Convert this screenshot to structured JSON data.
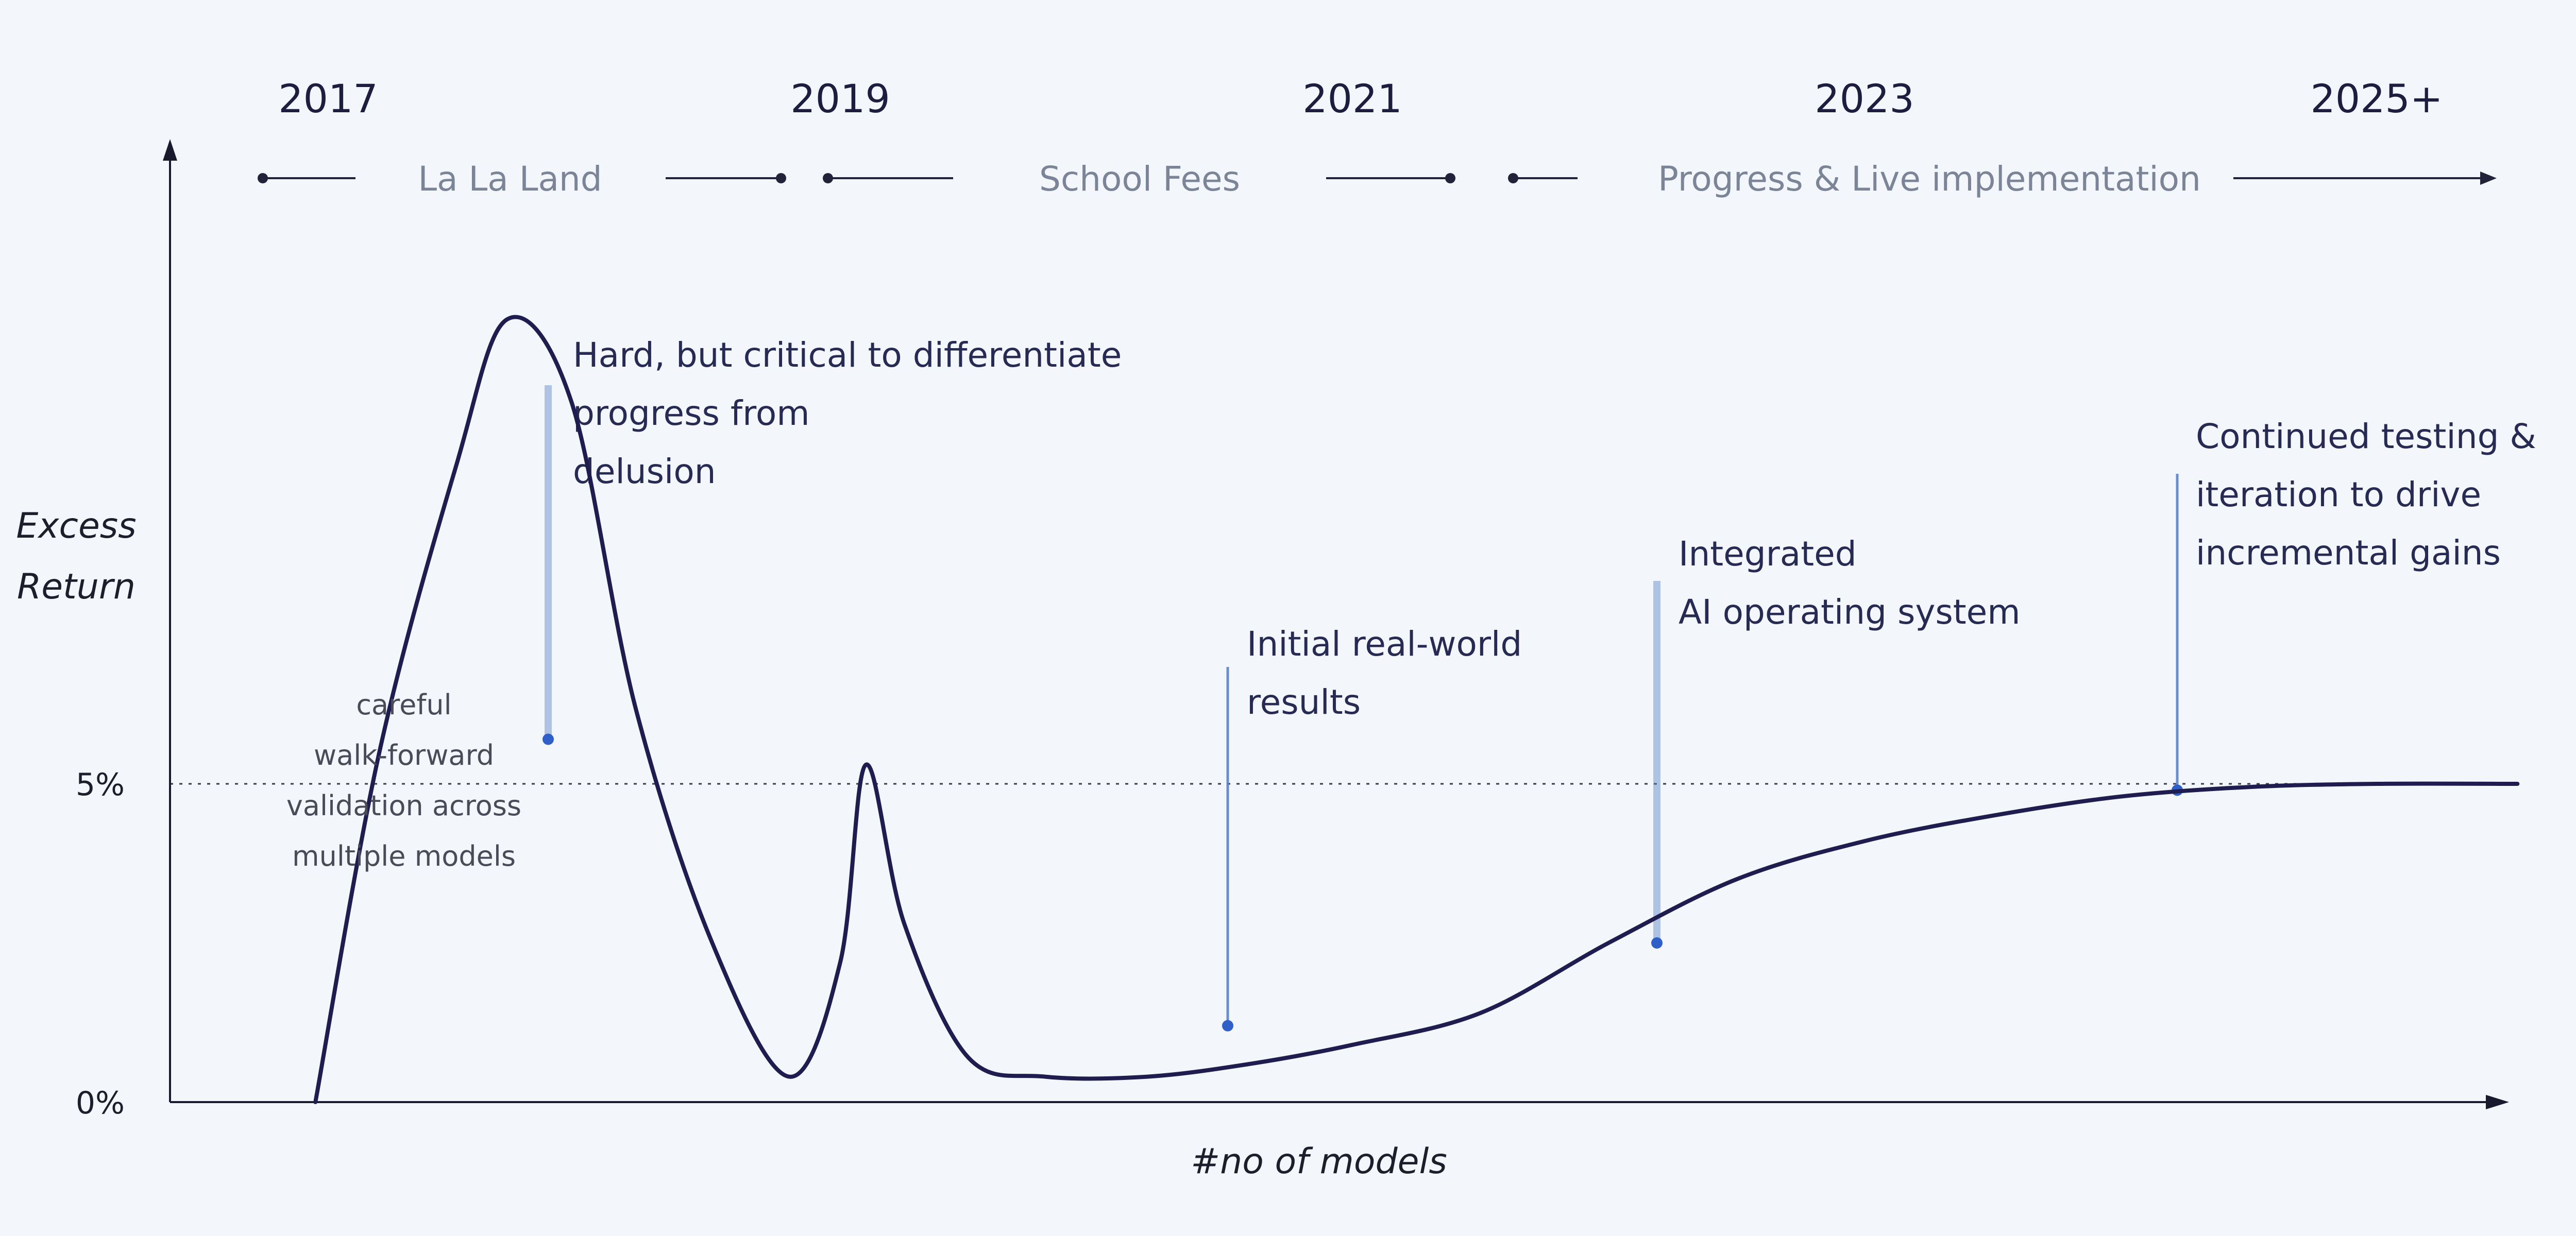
{
  "chart_data": {
    "type": "line",
    "title": "",
    "xlabel": "#no of models",
    "ylabel_lines": [
      "Excess",
      "Return"
    ],
    "y_ticks": [
      {
        "label": "0%",
        "value": 0
      },
      {
        "label": "5%",
        "value": 5
      }
    ],
    "ylim": [
      0,
      13
    ],
    "reference_line": {
      "value": 5,
      "style": "dotted"
    },
    "years": [
      "2017",
      "2019",
      "2021",
      "2023",
      "2025+"
    ],
    "phases": [
      {
        "label": "La La Land",
        "from": 2017,
        "to": 2019
      },
      {
        "label": "School Fees",
        "from": 2019,
        "to": 2021
      },
      {
        "label": "Progress & Live implementation",
        "from": 2021,
        "to": 2025
      }
    ],
    "series": [
      {
        "x": [
          2016.95,
          2017.2,
          2017.5,
          2017.7,
          2017.95,
          2018.2,
          2018.5,
          2018.8,
          2019.0,
          2019.1,
          2019.25,
          2019.5,
          2019.8,
          2020.2,
          2020.6,
          2021.0,
          2021.5,
          2022.0,
          2022.5,
          2023.0,
          2023.5,
          2024.0,
          2024.5,
          2025.0,
          2025.55
        ],
        "y": [
          0.0,
          5.5,
          10.0,
          12.3,
          11.0,
          6.2,
          2.5,
          0.4,
          2.2,
          5.3,
          2.8,
          0.7,
          0.4,
          0.4,
          0.6,
          0.9,
          1.4,
          2.5,
          3.5,
          4.1,
          4.5,
          4.8,
          4.95,
          5.0,
          5.0
        ]
      }
    ],
    "annotations": [
      {
        "lines": [
          "Hard, but critical to differentiate",
          "progress from",
          "delusion"
        ],
        "x": 2017.85,
        "y": 5.7
      },
      {
        "lines": [
          "Initial real-world",
          "results"
        ],
        "x": 2020.85,
        "y": 1.2
      },
      {
        "lines": [
          "Integrated",
          "AI operating system"
        ],
        "x": 2022.2,
        "y": 2.5
      },
      {
        "lines": [
          "Continued testing &",
          "iteration to drive",
          "incremental gains"
        ],
        "x": 2024.3,
        "y": 4.9
      }
    ],
    "note": {
      "lines": [
        "careful",
        "walk-forward",
        "validation across",
        "multiple models"
      ]
    },
    "colors": {
      "curve": "#1f1d4f",
      "axis": "#1a1a2e",
      "phase_line": "#22223a",
      "ann_line": "#5a82c8",
      "ann_marker": "#2f5fc8",
      "text": "#272a52",
      "phase_text": "#7b8597"
    }
  }
}
